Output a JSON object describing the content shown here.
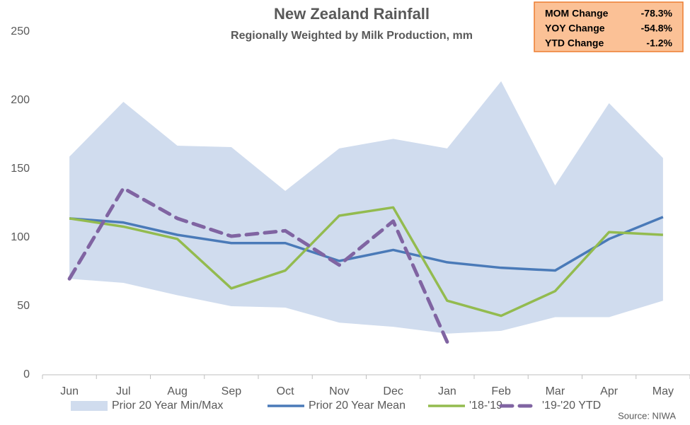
{
  "chart_data": {
    "type": "line",
    "title": "New Zealand Rainfall",
    "subtitle": "Regionally Weighted by Milk Production, mm",
    "source": "Source: NIWA",
    "categories": [
      "Jun",
      "Jul",
      "Aug",
      "Sep",
      "Oct",
      "Nov",
      "Dec",
      "Jan",
      "Feb",
      "Mar",
      "Apr",
      "May"
    ],
    "ylim": [
      0,
      250
    ],
    "yticks": [
      0,
      50,
      100,
      150,
      200,
      250
    ],
    "grid": false,
    "series": [
      {
        "name": "Prior 20 Year Min/Max",
        "kind": "band",
        "color": "#d0dcee",
        "low": [
          70,
          67,
          58,
          50,
          49,
          38,
          35,
          30,
          32,
          42,
          42,
          54
        ],
        "high": [
          159,
          199,
          167,
          166,
          134,
          165,
          172,
          165,
          214,
          138,
          198,
          158
        ]
      },
      {
        "name": "Prior 20 Year Mean",
        "color": "#4a7ab8",
        "dashed": false,
        "values": [
          114,
          111,
          102,
          96,
          96,
          83,
          91,
          82,
          78,
          76,
          99,
          115
        ]
      },
      {
        "name": "'18-'19",
        "color": "#93bb4f",
        "dashed": false,
        "values": [
          114,
          108,
          99,
          63,
          76,
          116,
          122,
          54,
          43,
          61,
          104,
          102
        ]
      },
      {
        "name": "'19-'20 YTD",
        "color": "#8064a2",
        "dashed": true,
        "values": [
          70,
          136,
          114,
          101,
          105,
          80,
          112,
          24,
          null,
          null,
          null,
          null
        ]
      }
    ],
    "annotations": [
      {
        "label": "MOM Change",
        "value": "-78.3%"
      },
      {
        "label": "YOY Change",
        "value": "-54.8%"
      },
      {
        "label": "YTD Change",
        "value": "-1.2%"
      }
    ]
  }
}
